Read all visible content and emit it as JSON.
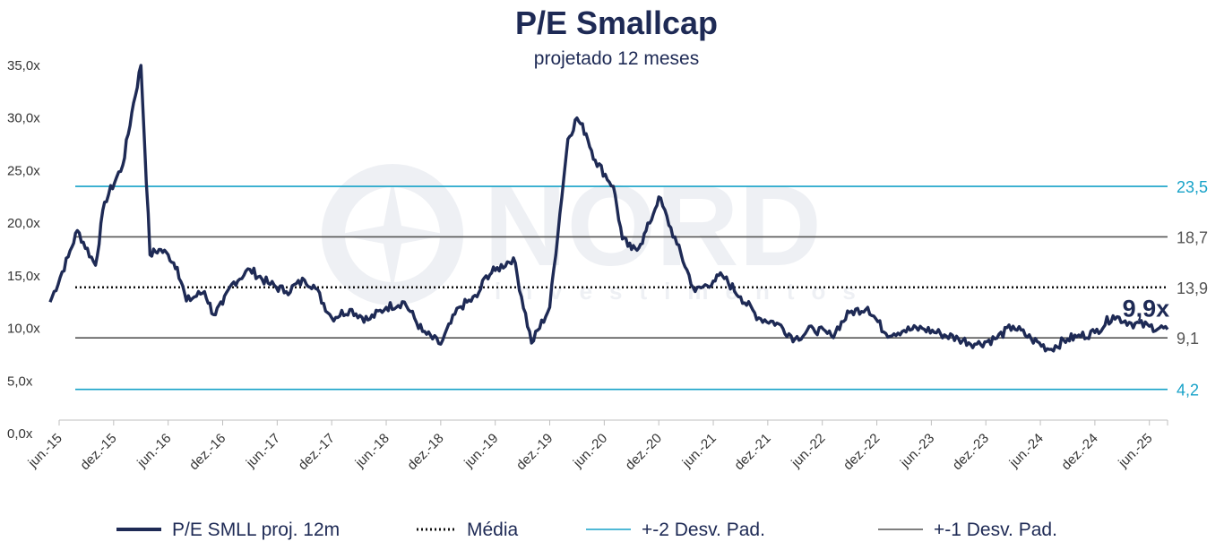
{
  "chart_data": {
    "type": "line",
    "title": "P/E Smallcap",
    "subtitle": "projetado 12 meses",
    "ylim": [
      0,
      35
    ],
    "y_ticks": [
      "0,0x",
      "5,0x",
      "10,0x",
      "15,0x",
      "20,0x",
      "25,0x",
      "30,0x",
      "35,0x"
    ],
    "y_tick_values": [
      0,
      5,
      10,
      15,
      20,
      25,
      30,
      35
    ],
    "x_range": [
      "2015-06",
      "2025-08"
    ],
    "x_tick_labels": [
      "jun.-15",
      "dez.-15",
      "jun.-16",
      "dez.-16",
      "jun.-17",
      "dez.-17",
      "jun.-18",
      "dez.-18",
      "jun.-19",
      "dez.-19",
      "jun.-20",
      "dez.-20",
      "jun.-21",
      "dez.-21",
      "jun.-22",
      "dez.-22",
      "jun.-23",
      "dez.-23",
      "jun.-24",
      "dez.-24",
      "jun.-25"
    ],
    "x_tick_dates": [
      "2015-06",
      "2015-12",
      "2016-06",
      "2016-12",
      "2017-06",
      "2017-12",
      "2018-06",
      "2018-12",
      "2019-06",
      "2019-12",
      "2020-06",
      "2020-12",
      "2021-06",
      "2021-12",
      "2022-06",
      "2022-12",
      "2023-06",
      "2023-12",
      "2024-06",
      "2024-12",
      "2025-06"
    ],
    "grid": false,
    "legend_position": "bottom",
    "series": [
      {
        "name": "P/E SMLL proj. 12m",
        "color": "#1e2a55",
        "x": [
          "2015-05",
          "2015-07",
          "2015-08",
          "2015-10",
          "2015-11",
          "2016-01",
          "2016-02",
          "2016-03",
          "2016-04",
          "2016-05",
          "2016-06",
          "2016-07",
          "2016-08",
          "2016-10",
          "2016-11",
          "2016-12",
          "2017-01",
          "2017-03",
          "2017-05",
          "2017-07",
          "2017-09",
          "2017-10",
          "2017-12",
          "2018-02",
          "2018-04",
          "2018-06",
          "2018-08",
          "2018-10",
          "2018-12",
          "2019-02",
          "2019-04",
          "2019-05",
          "2019-06",
          "2019-08",
          "2019-10",
          "2019-12",
          "2020-02",
          "2020-03",
          "2020-04",
          "2020-05",
          "2020-07",
          "2020-08",
          "2020-09",
          "2020-10",
          "2020-11",
          "2020-12",
          "2021-02",
          "2021-04",
          "2021-06",
          "2021-07",
          "2021-09",
          "2021-11",
          "2022-01",
          "2022-03",
          "2022-05",
          "2022-07",
          "2022-09",
          "2022-11",
          "2023-01",
          "2023-03",
          "2023-05",
          "2023-07",
          "2023-09",
          "2023-11",
          "2024-01",
          "2024-03",
          "2024-05",
          "2024-07",
          "2024-09",
          "2024-10",
          "2024-12",
          "2025-02",
          "2025-04",
          "2025-06",
          "2025-08"
        ],
        "values": [
          12.5,
          16.8,
          19.3,
          16.0,
          22.0,
          25.5,
          30.5,
          35.0,
          17.0,
          17.5,
          17.0,
          15.8,
          12.6,
          13.5,
          11.3,
          12.3,
          14.2,
          15.6,
          14.3,
          13.5,
          14.6,
          14.1,
          11.0,
          11.8,
          10.8,
          12.0,
          12.5,
          9.7,
          8.5,
          12.0,
          13.0,
          15.0,
          15.5,
          16.7,
          8.6,
          12.0,
          28.0,
          30.0,
          28.5,
          26.0,
          23.5,
          18.5,
          17.5,
          18.0,
          20.0,
          22.5,
          18.0,
          13.5,
          14.5,
          15.0,
          13.0,
          11.0,
          10.5,
          9.0,
          10.0,
          9.3,
          11.5,
          12.0,
          9.5,
          9.8,
          10.0,
          9.5,
          9.0,
          8.5,
          9.0,
          10.2,
          9.0,
          8.0,
          9.0,
          9.2,
          9.6,
          11.2,
          10.5,
          10.2,
          9.9
        ]
      }
    ],
    "reference_lines": [
      {
        "name": "+-2 Desv. Pad.",
        "value": 23.5,
        "label": "23,5",
        "color": "#17a2c8"
      },
      {
        "name": "+-1 Desv. Pad.",
        "value": 18.7,
        "label": "18,7",
        "color": "#555555"
      },
      {
        "name": "Média",
        "value": 13.9,
        "label": "13,9",
        "color": "#111111"
      },
      {
        "name": "+-1 Desv. Pad.",
        "value": 9.1,
        "label": "9,1",
        "color": "#555555"
      },
      {
        "name": "+-2 Desv. Pad.",
        "value": 4.2,
        "label": "4,2",
        "color": "#17a2c8"
      }
    ],
    "annotations": [
      {
        "text": "9,9x",
        "date": "2025-05",
        "value": 9.9
      }
    ],
    "legend": [
      {
        "label": "P/E SMLL proj. 12m",
        "style": "solid-thick",
        "color": "#1e2a55"
      },
      {
        "label": "Média",
        "style": "dotted",
        "color": "#111111"
      },
      {
        "label": "+-2 Desv. Pad.",
        "style": "solid-thin",
        "color": "#17a2c8"
      },
      {
        "label": "+-1 Desv. Pad.",
        "style": "solid-thin",
        "color": "#555555"
      }
    ]
  },
  "watermark": {
    "text": "NORD",
    "subtext": "investimentos",
    "icon": "compass-star-icon"
  },
  "colors": {
    "title": "#1e2a55",
    "axis": "#bfbfbf",
    "watermark": "#ebedf2"
  }
}
